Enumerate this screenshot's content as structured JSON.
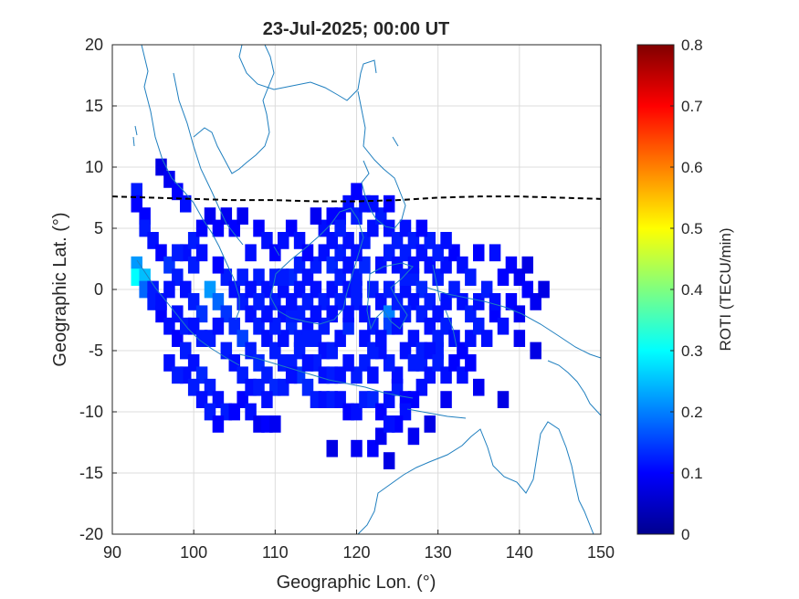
{
  "chart_data": {
    "type": "heatmap",
    "title": "23-Jul-2025; 00:00 UT",
    "xlabel": "Geographic Lon. (°)",
    "ylabel": "Geographic Lat. (°)",
    "xlim": [
      90,
      150
    ],
    "ylim": [
      -20,
      20
    ],
    "xticks": [
      "90",
      "100",
      "110",
      "120",
      "130",
      "140",
      "150"
    ],
    "yticks": [
      "20",
      "15",
      "10",
      "5",
      "0",
      "-5",
      "-10",
      "-15",
      "-20"
    ],
    "grid": true,
    "colorbar": {
      "label": "ROTI (TECU/min)",
      "range": [
        0,
        0.8
      ],
      "ticks": [
        "0.8",
        "0.7",
        "0.6",
        "0.5",
        "0.4",
        "0.3",
        "0.2",
        "0.1",
        "0"
      ],
      "colormap": "jet"
    },
    "magnetic_equator": {
      "style": "dashed",
      "color": "#000000",
      "points": [
        [
          90,
          7.6
        ],
        [
          95,
          7.5
        ],
        [
          100,
          7.4
        ],
        [
          105,
          7.3
        ],
        [
          110,
          7.3
        ],
        [
          115,
          7.2
        ],
        [
          120,
          7.2
        ],
        [
          125,
          7.3
        ],
        [
          130,
          7.5
        ],
        [
          135,
          7.6
        ],
        [
          140,
          7.6
        ],
        [
          145,
          7.5
        ],
        [
          150,
          7.4
        ]
      ]
    },
    "coastline_color": "#1f7fbf",
    "roti_cells": [
      [
        93,
        8,
        0.12
      ],
      [
        93,
        7,
        0.1
      ],
      [
        94,
        6,
        0.1
      ],
      [
        94,
        5,
        0.12
      ],
      [
        95,
        4,
        0.11
      ],
      [
        93,
        2,
        0.22
      ],
      [
        93,
        1,
        0.3
      ],
      [
        94,
        1,
        0.25
      ],
      [
        94,
        0,
        0.18
      ],
      [
        95,
        -1,
        0.12
      ],
      [
        96,
        10,
        0.08
      ],
      [
        97,
        9,
        0.09
      ],
      [
        98,
        8,
        0.1
      ],
      [
        99,
        7,
        0.11
      ],
      [
        96,
        3,
        0.1
      ],
      [
        97,
        2,
        0.14
      ],
      [
        98,
        1,
        0.12
      ],
      [
        99,
        0,
        0.11
      ],
      [
        100,
        -1,
        0.12
      ],
      [
        101,
        -2,
        0.14
      ],
      [
        96,
        -2,
        0.1
      ],
      [
        97,
        -3,
        0.11
      ],
      [
        98,
        -4,
        0.1
      ],
      [
        99,
        -5,
        0.12
      ],
      [
        100,
        -6,
        0.11
      ],
      [
        101,
        -7,
        0.13
      ],
      [
        102,
        -8,
        0.12
      ],
      [
        103,
        -9,
        0.11
      ],
      [
        104,
        -10,
        0.12
      ],
      [
        105,
        -10,
        0.1
      ],
      [
        102,
        0,
        0.22
      ],
      [
        103,
        -1,
        0.18
      ],
      [
        104,
        -2,
        0.14
      ],
      [
        105,
        -3,
        0.13
      ],
      [
        106,
        -4,
        0.15
      ],
      [
        107,
        -5,
        0.12
      ],
      [
        108,
        -6,
        0.13
      ],
      [
        109,
        -7,
        0.12
      ],
      [
        110,
        -8,
        0.13
      ],
      [
        111,
        -8,
        0.12
      ],
      [
        106,
        -9,
        0.1
      ],
      [
        107,
        -10,
        0.11
      ],
      [
        108,
        -11,
        0.09
      ],
      [
        109,
        -11,
        0.1
      ],
      [
        110,
        -11,
        0.09
      ],
      [
        112,
        -6,
        0.12
      ],
      [
        113,
        -7,
        0.14
      ],
      [
        114,
        -8,
        0.13
      ],
      [
        115,
        -9,
        0.12
      ],
      [
        116,
        -9,
        0.11
      ],
      [
        117,
        -9,
        0.12
      ],
      [
        118,
        -9,
        0.11
      ],
      [
        119,
        -10,
        0.1
      ],
      [
        120,
        -10,
        0.11
      ],
      [
        121,
        -9,
        0.12
      ],
      [
        122,
        -9,
        0.13
      ],
      [
        123,
        -10,
        0.1
      ],
      [
        124,
        -9,
        0.11
      ],
      [
        125,
        -8,
        0.12
      ],
      [
        126,
        -9,
        0.1
      ],
      [
        117,
        -13,
        0.08
      ],
      [
        120,
        -13,
        0.09
      ],
      [
        122,
        -13,
        0.1
      ],
      [
        123,
        -12,
        0.09
      ],
      [
        124,
        -14,
        0.08
      ],
      [
        127,
        -12,
        0.09
      ],
      [
        129,
        -11,
        0.08
      ],
      [
        131,
        -9,
        0.09
      ],
      [
        135,
        -8,
        0.09
      ],
      [
        138,
        -9,
        0.08
      ],
      [
        99,
        3,
        0.11
      ],
      [
        100,
        4,
        0.12
      ],
      [
        101,
        5,
        0.1
      ],
      [
        102,
        6,
        0.09
      ],
      [
        103,
        5,
        0.1
      ],
      [
        104,
        6,
        0.09
      ],
      [
        105,
        5,
        0.1
      ],
      [
        107,
        3,
        0.11
      ],
      [
        108,
        1,
        0.12
      ],
      [
        109,
        0,
        0.11
      ],
      [
        110,
        -1,
        0.12
      ],
      [
        111,
        -2,
        0.11
      ],
      [
        112,
        -3,
        0.13
      ],
      [
        113,
        -4,
        0.12
      ],
      [
        114,
        -3,
        0.11
      ],
      [
        115,
        -4,
        0.12
      ],
      [
        116,
        -5,
        0.11
      ],
      [
        117,
        -5,
        0.12
      ],
      [
        118,
        -4,
        0.11
      ],
      [
        119,
        -3,
        0.13
      ],
      [
        110,
        1,
        0.12
      ],
      [
        111,
        0,
        0.11
      ],
      [
        112,
        1,
        0.13
      ],
      [
        113,
        2,
        0.12
      ],
      [
        114,
        1,
        0.11
      ],
      [
        115,
        2,
        0.12
      ],
      [
        116,
        3,
        0.11
      ],
      [
        117,
        2,
        0.13
      ],
      [
        118,
        3,
        0.12
      ],
      [
        119,
        4,
        0.11
      ],
      [
        120,
        1,
        0.12
      ],
      [
        121,
        2,
        0.13
      ],
      [
        122,
        0,
        0.12
      ],
      [
        123,
        -1,
        0.11
      ],
      [
        124,
        -2,
        0.2
      ],
      [
        124,
        -3,
        0.15
      ],
      [
        125,
        -1,
        0.12
      ],
      [
        126,
        0,
        0.11
      ],
      [
        127,
        1,
        0.12
      ],
      [
        128,
        0,
        0.13
      ],
      [
        120,
        3,
        0.11
      ],
      [
        121,
        4,
        0.12
      ],
      [
        122,
        5,
        0.11
      ],
      [
        123,
        6,
        0.12
      ],
      [
        124,
        5,
        0.11
      ],
      [
        125,
        4,
        0.12
      ],
      [
        126,
        5,
        0.11
      ],
      [
        127,
        4,
        0.12
      ],
      [
        128,
        3,
        0.11
      ],
      [
        129,
        4,
        0.12
      ],
      [
        118,
        6,
        0.1
      ],
      [
        119,
        7,
        0.11
      ],
      [
        120,
        6,
        0.12
      ],
      [
        121,
        7,
        0.11
      ],
      [
        112,
        5,
        0.1
      ],
      [
        113,
        4,
        0.11
      ],
      [
        114,
        3,
        0.1
      ],
      [
        116,
        5,
        0.11
      ],
      [
        117,
        6,
        0.1
      ],
      [
        115,
        6,
        0.09
      ],
      [
        129,
        -1,
        0.12
      ],
      [
        130,
        -2,
        0.11
      ],
      [
        131,
        -3,
        0.12
      ],
      [
        132,
        -4,
        0.11
      ],
      [
        133,
        -5,
        0.1
      ],
      [
        134,
        -4,
        0.11
      ],
      [
        135,
        -3,
        0.12
      ],
      [
        136,
        -4,
        0.11
      ],
      [
        137,
        -2,
        0.1
      ],
      [
        138,
        -3,
        0.11
      ],
      [
        130,
        1,
        0.12
      ],
      [
        131,
        2,
        0.11
      ],
      [
        132,
        3,
        0.1
      ],
      [
        133,
        2,
        0.11
      ],
      [
        134,
        1,
        0.12
      ],
      [
        135,
        3,
        0.1
      ],
      [
        137,
        3,
        0.11
      ],
      [
        139,
        2,
        0.1
      ],
      [
        140,
        1,
        0.09
      ],
      [
        141,
        2,
        0.08
      ],
      [
        139,
        -1,
        0.1
      ],
      [
        140,
        -2,
        0.09
      ],
      [
        141,
        0,
        0.1
      ],
      [
        142,
        -1,
        0.09
      ],
      [
        143,
        0,
        0.08
      ],
      [
        140,
        -4,
        0.09
      ],
      [
        142,
        -5,
        0.08
      ],
      [
        128,
        -6,
        0.12
      ],
      [
        129,
        -7,
        0.11
      ],
      [
        130,
        -5,
        0.12
      ],
      [
        126,
        -5,
        0.11
      ],
      [
        127,
        -6,
        0.12
      ],
      [
        125,
        -7,
        0.11
      ],
      [
        121,
        -6,
        0.12
      ],
      [
        122,
        -7,
        0.11
      ],
      [
        120,
        -7,
        0.12
      ],
      [
        119,
        -6,
        0.11
      ],
      [
        124,
        -6,
        0.12
      ],
      [
        123,
        -5,
        0.11
      ],
      [
        102,
        -4,
        0.12
      ],
      [
        103,
        -3,
        0.11
      ],
      [
        104,
        -5,
        0.12
      ],
      [
        105,
        -6,
        0.11
      ],
      [
        106,
        -7,
        0.12
      ],
      [
        107,
        -8,
        0.11
      ],
      [
        108,
        -8,
        0.12
      ],
      [
        109,
        -9,
        0.11
      ],
      [
        98,
        -2,
        0.11
      ],
      [
        99,
        -3,
        0.12
      ],
      [
        100,
        -3,
        0.11
      ],
      [
        101,
        -4,
        0.12
      ],
      [
        97,
        0,
        0.11
      ],
      [
        98,
        3,
        0.12
      ],
      [
        95,
        0,
        0.12
      ],
      [
        96,
        -1,
        0.11
      ],
      [
        100,
        2,
        0.12
      ],
      [
        101,
        3,
        0.11
      ],
      [
        106,
        -1,
        0.12
      ],
      [
        107,
        -2,
        0.11
      ],
      [
        108,
        -3,
        0.12
      ],
      [
        109,
        -4,
        0.11
      ],
      [
        110,
        -5,
        0.12
      ],
      [
        111,
        -4,
        0.11
      ],
      [
        112,
        -2,
        0.12
      ],
      [
        113,
        0,
        0.11
      ],
      [
        114,
        -1,
        0.12
      ],
      [
        115,
        0,
        0.11
      ],
      [
        116,
        -1,
        0.12
      ],
      [
        117,
        0,
        0.11
      ],
      [
        118,
        1,
        0.12
      ],
      [
        119,
        0,
        0.11
      ],
      [
        120,
        -1,
        0.12
      ],
      [
        121,
        -2,
        0.11
      ],
      [
        122,
        -3,
        0.12
      ],
      [
        123,
        2,
        0.11
      ],
      [
        124,
        3,
        0.12
      ],
      [
        125,
        2,
        0.11
      ],
      [
        126,
        1,
        0.12
      ],
      [
        127,
        -1,
        0.11
      ],
      [
        128,
        -2,
        0.12
      ],
      [
        129,
        -3,
        0.11
      ],
      [
        130,
        -4,
        0.12
      ],
      [
        131,
        -1,
        0.11
      ],
      [
        132,
        0,
        0.12
      ],
      [
        133,
        -1,
        0.11
      ],
      [
        134,
        -2,
        0.12
      ],
      [
        135,
        -1,
        0.11
      ],
      [
        136,
        0,
        0.12
      ],
      [
        137,
        -1,
        0.11
      ],
      [
        138,
        1,
        0.1
      ],
      [
        129,
        2,
        0.11
      ],
      [
        130,
        3,
        0.12
      ],
      [
        131,
        4,
        0.11
      ],
      [
        126,
        3,
        0.12
      ],
      [
        127,
        2,
        0.11
      ],
      [
        128,
        5,
        0.1
      ],
      [
        124,
        7,
        0.1
      ],
      [
        122,
        7,
        0.11
      ],
      [
        120,
        8,
        0.1
      ],
      [
        106,
        6,
        0.09
      ],
      [
        108,
        5,
        0.1
      ],
      [
        109,
        4,
        0.11
      ],
      [
        110,
        3,
        0.1
      ],
      [
        111,
        4,
        0.11
      ],
      [
        104,
        1,
        0.12
      ],
      [
        105,
        0,
        0.11
      ],
      [
        106,
        1,
        0.12
      ],
      [
        107,
        0,
        0.11
      ],
      [
        103,
        2,
        0.1
      ],
      [
        115,
        -6,
        0.12
      ],
      [
        116,
        -7,
        0.11
      ],
      [
        117,
        -7,
        0.12
      ],
      [
        118,
        -7,
        0.11
      ],
      [
        113,
        -5,
        0.12
      ],
      [
        114,
        -6,
        0.11
      ],
      [
        111,
        -6,
        0.12
      ],
      [
        112,
        -7,
        0.11
      ],
      [
        110,
        -3,
        0.12
      ],
      [
        109,
        -2,
        0.11
      ],
      [
        108,
        -1,
        0.12
      ],
      [
        118,
        -1,
        0.12
      ],
      [
        117,
        -2,
        0.11
      ],
      [
        116,
        -3,
        0.12
      ],
      [
        119,
        -2,
        0.11
      ],
      [
        114,
        -4,
        0.12
      ],
      [
        115,
        -2,
        0.11
      ],
      [
        113,
        -2,
        0.12
      ],
      [
        112,
        -1,
        0.11
      ],
      [
        111,
        1,
        0.12
      ],
      [
        117,
        4,
        0.11
      ],
      [
        118,
        5,
        0.12
      ],
      [
        119,
        2,
        0.11
      ],
      [
        120,
        0,
        0.12
      ],
      [
        121,
        -4,
        0.11
      ],
      [
        122,
        -5,
        0.12
      ],
      [
        123,
        -4,
        0.11
      ],
      [
        124,
        0,
        0.12
      ],
      [
        125,
        -3,
        0.11
      ],
      [
        126,
        -2,
        0.12
      ],
      [
        127,
        -4,
        0.11
      ],
      [
        128,
        -5,
        0.12
      ],
      [
        129,
        -5,
        0.11
      ],
      [
        130,
        -6,
        0.12
      ],
      [
        131,
        -7,
        0.11
      ],
      [
        132,
        -6,
        0.1
      ],
      [
        133,
        -7,
        0.11
      ],
      [
        134,
        -6,
        0.1
      ],
      [
        128,
        -8,
        0.11
      ],
      [
        127,
        -9,
        0.1
      ],
      [
        126,
        -10,
        0.11
      ],
      [
        125,
        -11,
        0.1
      ],
      [
        124,
        -11,
        0.11
      ],
      [
        99,
        -7,
        0.11
      ],
      [
        100,
        -8,
        0.12
      ],
      [
        101,
        -9,
        0.11
      ],
      [
        102,
        -10,
        0.12
      ],
      [
        103,
        -11,
        0.1
      ],
      [
        97,
        -6,
        0.11
      ],
      [
        98,
        -7,
        0.12
      ]
    ]
  }
}
